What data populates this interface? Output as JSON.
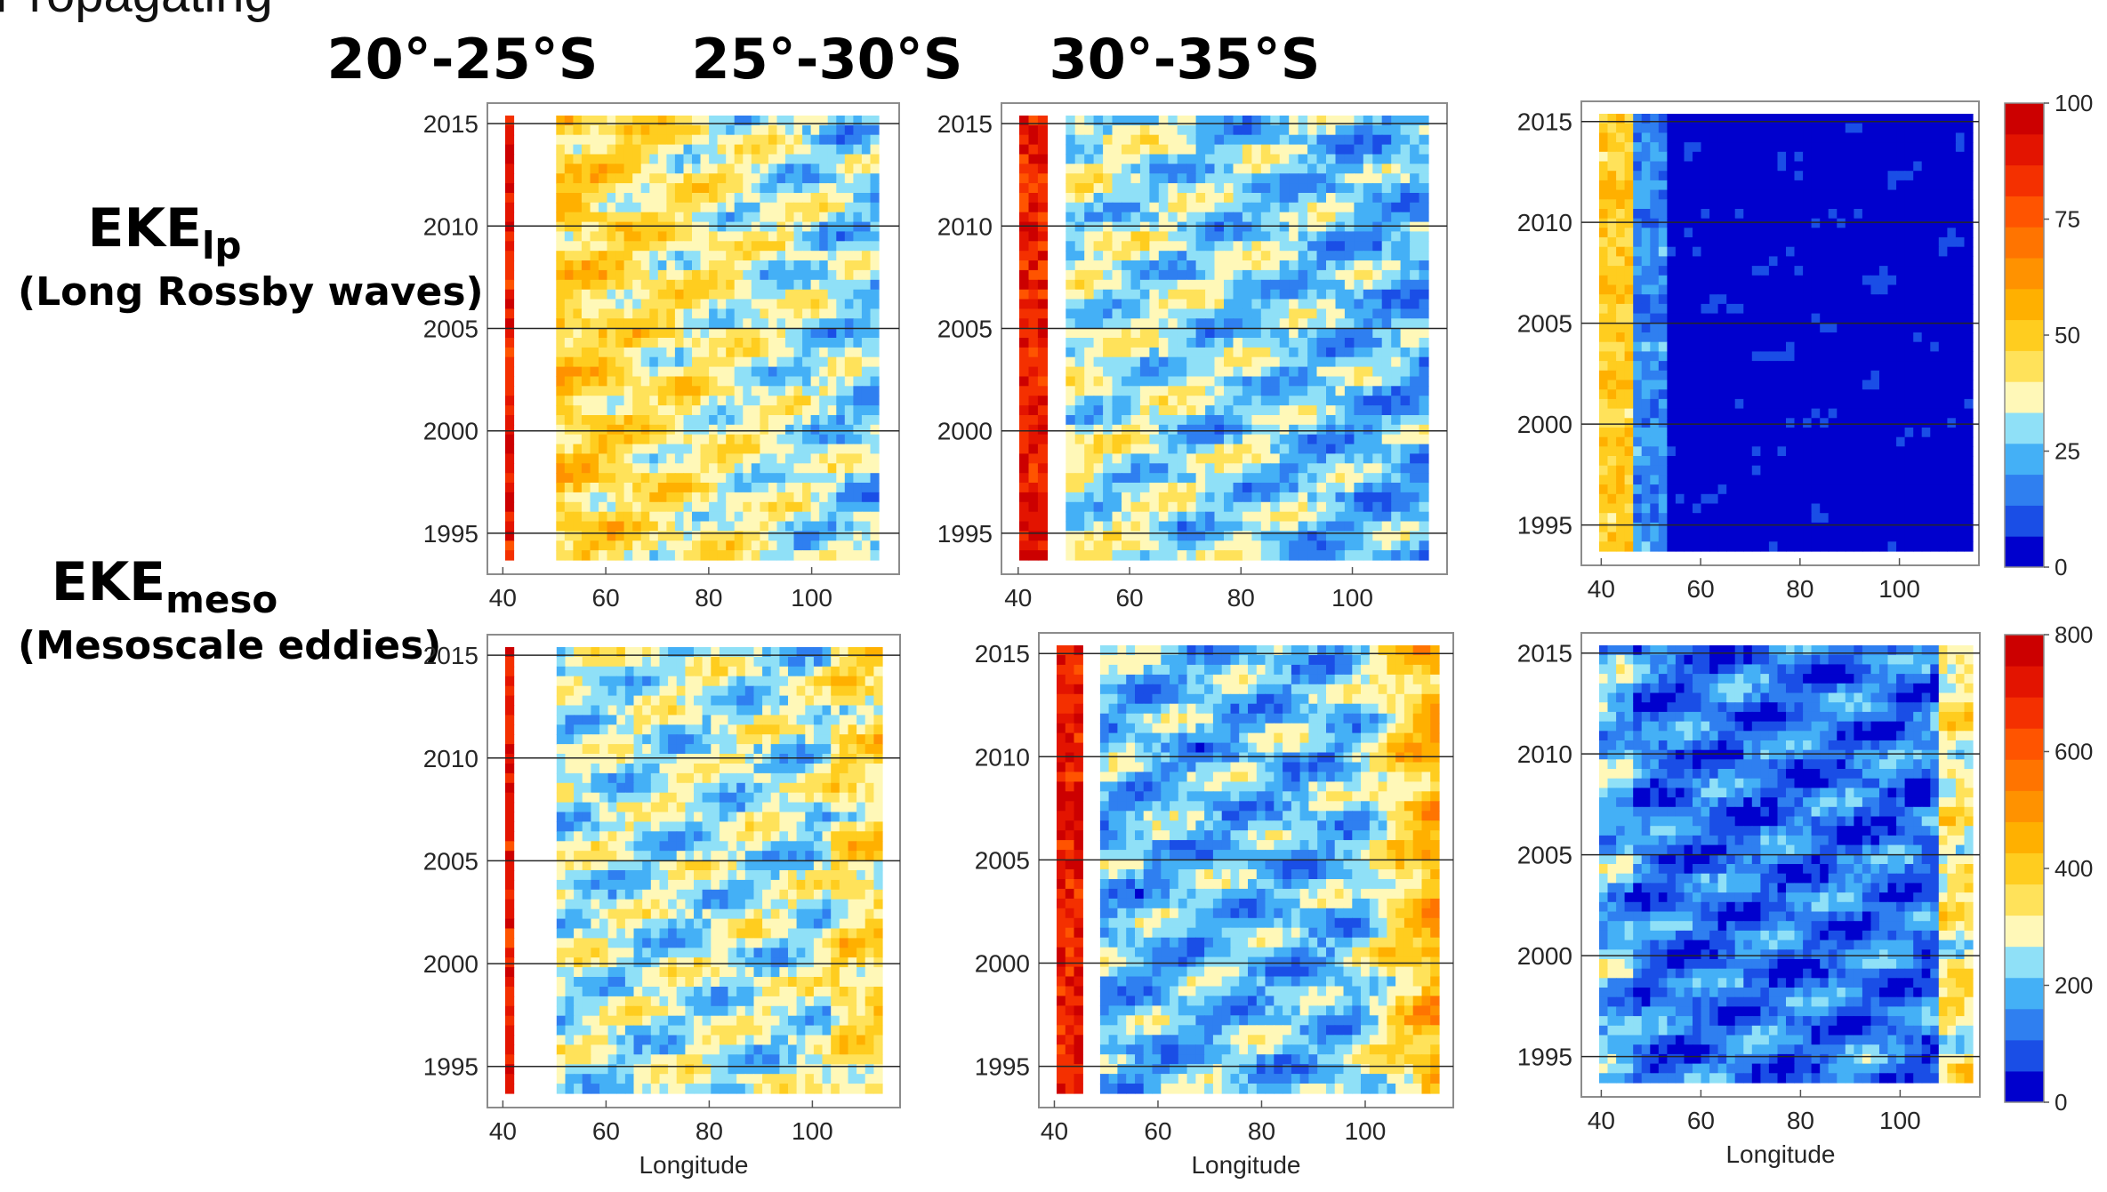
{
  "header_text": "Propagating",
  "column_titles": [
    "20°-25°S",
    "25°-30°S",
    "30°-35°S"
  ],
  "row_titles": [
    {
      "main": "EKE",
      "sub_script": "lp",
      "subtitle": "(Long Rossby waves)"
    },
    {
      "main": "EKE",
      "sub_script": "meso",
      "subtitle": "(Mesoscale eddies)"
    }
  ],
  "chart_data": [
    {
      "type": "heatmap",
      "title": "20°-25°S",
      "row": "EKE lp",
      "xlabel": "",
      "ylabel": "",
      "xlim": [
        37,
        117
      ],
      "ylim": [
        1993,
        2016
      ],
      "xticks": [
        40,
        60,
        80,
        100
      ],
      "yticks": [
        1995,
        2000,
        2005,
        2010,
        2015
      ],
      "grid_y": true,
      "land_gap": [
        42,
        50
      ],
      "colorbar_max": 100
    },
    {
      "type": "heatmap",
      "title": "25°-30°S",
      "row": "EKE lp",
      "xlabel": "",
      "ylabel": "",
      "xlim": [
        37,
        117
      ],
      "ylim": [
        1993,
        2016
      ],
      "xticks": [
        40,
        60,
        80,
        100
      ],
      "yticks": [
        1995,
        2000,
        2005,
        2010,
        2015
      ],
      "grid_y": true,
      "land_gap": [
        44,
        48
      ],
      "colorbar_max": 100
    },
    {
      "type": "heatmap",
      "title": "30°-35°S",
      "row": "EKE lp",
      "xlabel": "",
      "ylabel": "",
      "xlim": [
        36,
        116
      ],
      "ylim": [
        1993,
        2016
      ],
      "xticks": [
        40,
        60,
        80,
        100
      ],
      "yticks": [
        1995,
        2000,
        2005,
        2010,
        2015
      ],
      "grid_y": true,
      "colorbar": {
        "ticks": [
          0,
          25,
          50,
          75,
          100
        ]
      }
    },
    {
      "type": "heatmap",
      "title": "20°-25°S",
      "row": "EKE meso",
      "xlabel": "Longitude",
      "ylabel": "",
      "xlim": [
        37,
        117
      ],
      "ylim": [
        1993,
        2016
      ],
      "xticks": [
        40,
        60,
        80,
        100
      ],
      "yticks": [
        1995,
        2000,
        2005,
        2010,
        2015
      ],
      "grid_y": true,
      "land_gap": [
        42,
        50
      ],
      "colorbar_max": 800
    },
    {
      "type": "heatmap",
      "title": "25°-30°S",
      "row": "EKE meso",
      "xlabel": "Longitude",
      "ylabel": "",
      "xlim": [
        37,
        117
      ],
      "ylim": [
        1993,
        2016
      ],
      "xticks": [
        40,
        60,
        80,
        100
      ],
      "yticks": [
        1995,
        2000,
        2005,
        2010,
        2015
      ],
      "grid_y": true,
      "land_gap": [
        44,
        48
      ],
      "colorbar_max": 800
    },
    {
      "type": "heatmap",
      "title": "30°-35°S",
      "row": "EKE meso",
      "xlabel": "Longitude",
      "ylabel": "",
      "xlim": [
        36,
        116
      ],
      "ylim": [
        1993,
        2016
      ],
      "xticks": [
        40,
        60,
        80,
        100
      ],
      "yticks": [
        1995,
        2000,
        2005,
        2010,
        2015
      ],
      "grid_y": true,
      "colorbar": {
        "ticks": [
          0,
          200,
          400,
          600,
          800
        ]
      }
    }
  ],
  "colormap": [
    "#0000cd",
    "#1a4ee6",
    "#2f7ff0",
    "#44b0f6",
    "#8fe0f7",
    "#fff8b8",
    "#ffe25a",
    "#ffcd1f",
    "#ffb000",
    "#ff9200",
    "#ff7400",
    "#ff5400",
    "#f43000",
    "#e31400",
    "#cc0000"
  ]
}
